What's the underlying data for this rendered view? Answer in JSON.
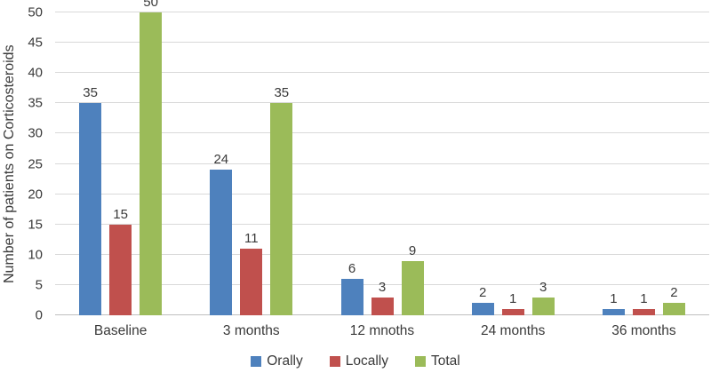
{
  "chart_data": {
    "type": "bar",
    "title": "",
    "xlabel": "",
    "ylabel": "Number of patients on Corticosteroids",
    "categories": [
      "Baseline",
      "3 months",
      "12 mnoths",
      "24 months",
      "36 months"
    ],
    "series": [
      {
        "name": "Orally",
        "color": "#4E81BD",
        "values": [
          35,
          24,
          6,
          2,
          1
        ]
      },
      {
        "name": "Locally",
        "color": "#C0504D",
        "values": [
          15,
          11,
          3,
          1,
          1
        ]
      },
      {
        "name": "Total",
        "color": "#9BBB59",
        "values": [
          50,
          35,
          9,
          3,
          2
        ]
      }
    ],
    "ylim": [
      0,
      50
    ],
    "yticks": [
      0,
      5,
      10,
      15,
      20,
      25,
      30,
      35,
      40,
      45,
      50
    ],
    "grid": "horizontal",
    "gridline_color": "#D9D9D9",
    "data_labels": true,
    "legend_position": "bottom"
  }
}
